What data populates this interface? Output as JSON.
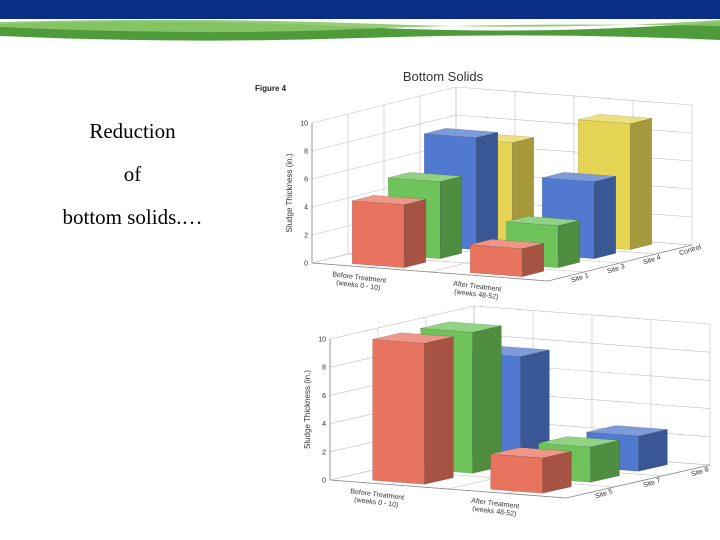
{
  "slide": {
    "caption_lines": [
      "Reduction",
      "of",
      "bottom solids.…"
    ],
    "colors": {
      "banner_blue": "#0a2e86",
      "banner_green": "#4f9b3c",
      "banner_light_green": "#8cc869"
    }
  },
  "figure": {
    "label": "Figure 4",
    "title": "Bottom Solids"
  },
  "chart_data": [
    {
      "type": "bar",
      "title": "Bottom Solids",
      "ylabel": "Sludge Thickness (in.)",
      "ylim": [
        0,
        10
      ],
      "yticks": [
        "0",
        "2",
        "4",
        "6",
        "8",
        "10"
      ],
      "categories": [
        "Before Treatment\n(weeks 0 - 10)",
        "After Treatment\n(weeks 48-52)"
      ],
      "depth_labels": [
        "Site 1",
        "Site 3",
        "Site 4",
        "Control"
      ],
      "series": [
        {
          "name": "Site 1",
          "color": "#e8735f",
          "values": [
            4.5,
            2.0
          ]
        },
        {
          "name": "Site 3",
          "color": "#6ec45a",
          "values": [
            5.5,
            3.0
          ]
        },
        {
          "name": "Site 4",
          "color": "#5179cf",
          "values": [
            8.0,
            5.5
          ]
        },
        {
          "name": "Control",
          "color": "#e6d554",
          "values": [
            7.0,
            9.0
          ]
        }
      ]
    },
    {
      "type": "bar",
      "ylabel": "Sludge Thickness (in.)",
      "ylim": [
        0,
        10
      ],
      "yticks": [
        "0",
        "2",
        "4",
        "6",
        "8",
        "10"
      ],
      "categories": [
        "Before Treatment\n(weeks 0 - 10)",
        "After Treatment\n(weeks 48-52)"
      ],
      "depth_labels": [
        "Site 5",
        "Site 7",
        "Site 8"
      ],
      "series": [
        {
          "name": "Site 5",
          "color": "#e8735f",
          "values": [
            10.0,
            2.5
          ]
        },
        {
          "name": "Site 7",
          "color": "#6ec45a",
          "values": [
            10.0,
            2.5
          ]
        },
        {
          "name": "Site 8",
          "color": "#5179cf",
          "values": [
            7.5,
            2.5
          ]
        }
      ]
    }
  ]
}
